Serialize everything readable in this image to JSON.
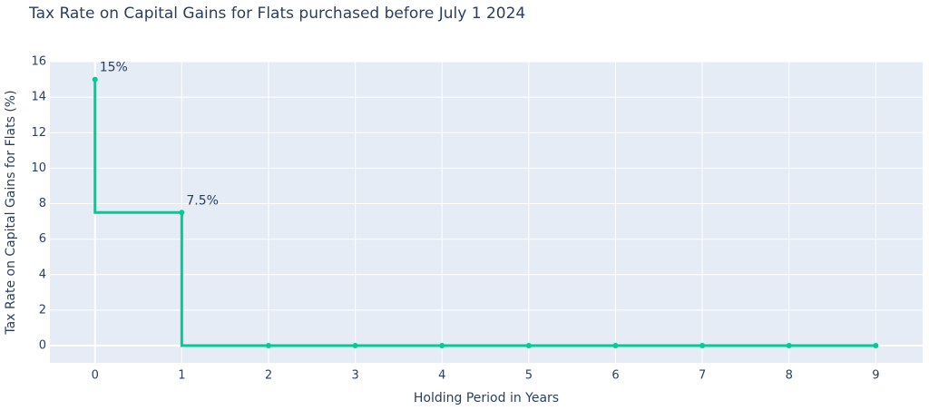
{
  "chart_data": {
    "type": "line",
    "title": "Tax Rate on Capital Gains for Flats purchased before July 1 2024",
    "x_label": "Holding Period in Years",
    "y_label": "Tax Rate on Capital Gains for Flats (%)",
    "x": [
      0,
      1,
      2,
      3,
      4,
      5,
      6,
      7,
      8,
      9
    ],
    "values": [
      15,
      7.5,
      0,
      0,
      0,
      0,
      0,
      0,
      0,
      0
    ],
    "value_labels": [
      "15%",
      "7.5%",
      null,
      null,
      null,
      null,
      null,
      null,
      null,
      null
    ],
    "color": "#00cc96",
    "line_shape": "vh",
    "xlim": [
      -0.52,
      9.54
    ],
    "xticks": [
      0,
      1,
      2,
      3,
      4,
      5,
      6,
      7,
      8,
      9
    ],
    "ylim": [
      -0.97,
      16
    ],
    "yticks": [
      0,
      2,
      4,
      6,
      8,
      10,
      12,
      14,
      16
    ],
    "grid": true
  }
}
